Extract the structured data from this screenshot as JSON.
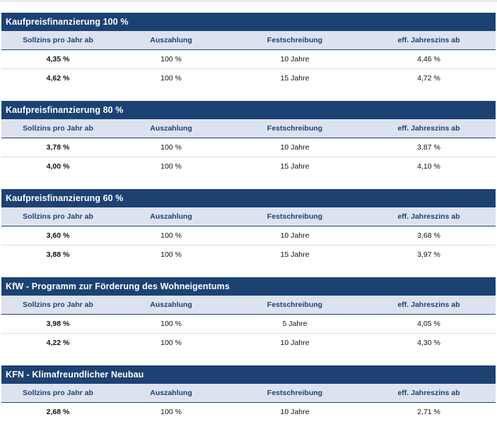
{
  "columns": [
    "Sollzins pro Jahr ab",
    "Auszahlung",
    "Festschreibung",
    "eff. Jahreszins ab"
  ],
  "sections": [
    {
      "title": "Kaufpreisfinanzierung 100 %",
      "rows": [
        [
          "4,35 %",
          "100 %",
          "10 Jahre",
          "4,46 %"
        ],
        [
          "4,62 %",
          "100 %",
          "15 Jahre",
          "4,72 %"
        ]
      ]
    },
    {
      "title": "Kaufpreisfinanzierung 80 %",
      "rows": [
        [
          "3,78 %",
          "100 %",
          "10 Jahre",
          "3,87 %"
        ],
        [
          "4,00 %",
          "100 %",
          "15 Jahre",
          "4,10 %"
        ]
      ]
    },
    {
      "title": "Kaufpreisfinanzierung 60 %",
      "rows": [
        [
          "3,60 %",
          "100 %",
          "10 Jahre",
          "3,68 %"
        ],
        [
          "3,88 %",
          "100 %",
          "15 Jahre",
          "3,97 %"
        ]
      ]
    },
    {
      "title": "KfW - Programm zur Förderung des Wohneigentums",
      "rows": [
        [
          "3,98 %",
          "100 %",
          "5 Jahre",
          "4,05 %"
        ],
        [
          "4,22 %",
          "100 %",
          "10 Jahre",
          "4,30 %"
        ]
      ]
    },
    {
      "title": "KFN - Klimafreundlicher Neubau",
      "rows": [
        [
          "2,68 %",
          "100 %",
          "10 Jahre",
          "2,71 %"
        ]
      ]
    }
  ]
}
